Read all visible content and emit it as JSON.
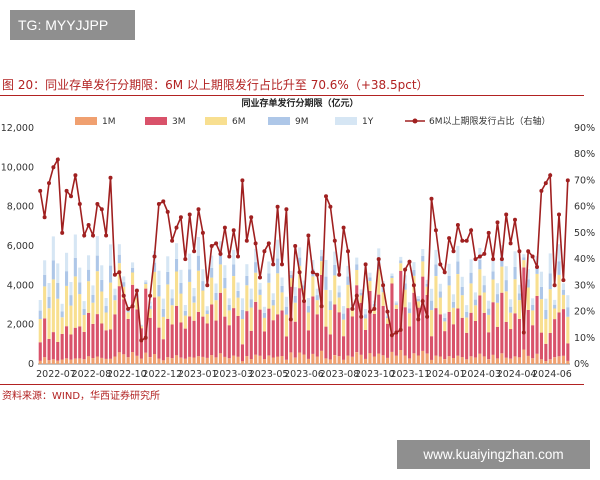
{
  "watermark_top": "TG: MYYJJPP",
  "watermark_bottom": "www.kuaiyingzhan.com",
  "figure_title": "图 20：同业存单发行分期限：6M 以上期限发行占比升至 70.6%（+38.5pct）",
  "source": "资料来源：WIND，华西证券研究所",
  "chart_data": {
    "type": "bar",
    "title": "同业存单发行分期限（亿元）",
    "stacked": true,
    "x_tick_labels": [
      "2022-07",
      "2022-08",
      "2022-10",
      "2022-12",
      "2023-01",
      "2023-03",
      "2023-05",
      "2023-06",
      "2023-08",
      "2023-10",
      "2023-11",
      "2024-01",
      "2024-03",
      "2024-04",
      "2024-06"
    ],
    "y_left": {
      "min": 0,
      "max": 12000,
      "ticks": [
        "0",
        "2,000",
        "4,000",
        "6,000",
        "8,000",
        "10,000",
        "12,000"
      ]
    },
    "y_right": {
      "min": 0,
      "max": 90,
      "ticks": [
        "0%",
        "10%",
        "20%",
        "30%",
        "40%",
        "50%",
        "60%",
        "70%",
        "80%",
        "90%"
      ]
    },
    "series": [
      {
        "name": "1M",
        "color": "#f0a070"
      },
      {
        "name": "3M",
        "color": "#d9526a"
      },
      {
        "name": "6M",
        "color": "#f8df90"
      },
      {
        "name": "9M",
        "color": "#aec7e8"
      },
      {
        "name": "1Y",
        "color": "#d6e6f4"
      },
      {
        "name": "6M以上期限发行占比（右轴）",
        "color": "#a02020",
        "axis": "right",
        "values": [
          66,
          56,
          69,
          75,
          78,
          50,
          66,
          64,
          72,
          61,
          49,
          53,
          49,
          61,
          59,
          49,
          71,
          34,
          35,
          26,
          21,
          22,
          28,
          9,
          10,
          26,
          41,
          61,
          62,
          58,
          47,
          52,
          56,
          40,
          57,
          43,
          59,
          50,
          30,
          45,
          46,
          42,
          52,
          41,
          51,
          41,
          70,
          47,
          56,
          46,
          33,
          43,
          46,
          38,
          60,
          38,
          59,
          17,
          45,
          35,
          24,
          49,
          35,
          34,
          22,
          64,
          60,
          47,
          34,
          52,
          43,
          21,
          26,
          18,
          38,
          20,
          21,
          40,
          30,
          20,
          11,
          12,
          13,
          36,
          39,
          30,
          17,
          24,
          18,
          63,
          51,
          38,
          35,
          48,
          43,
          53,
          47,
          47,
          51,
          40,
          41,
          42,
          50,
          40,
          54,
          40,
          57,
          46,
          55,
          43,
          12,
          43,
          41,
          37,
          66,
          69,
          72,
          30,
          57,
          32,
          70
        ]
      }
    ]
  }
}
